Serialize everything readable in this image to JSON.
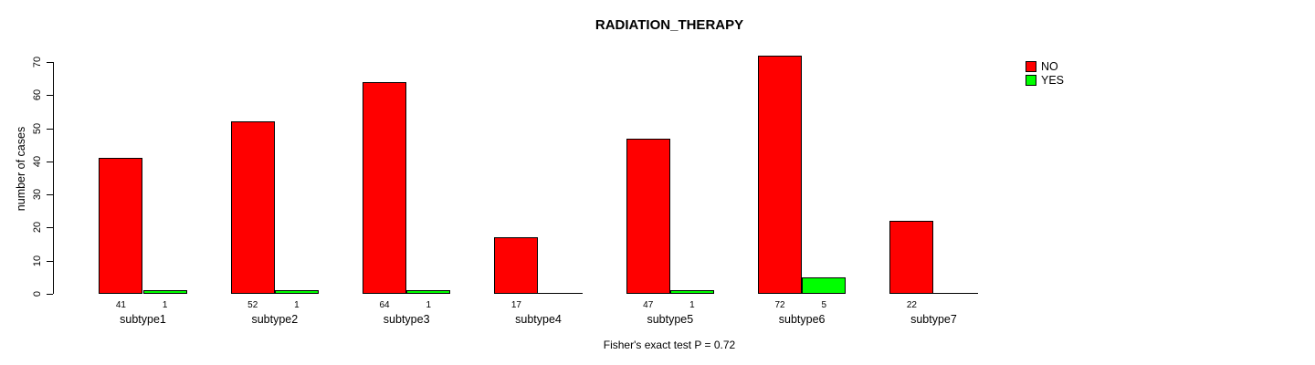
{
  "title": "RADIATION_THERAPY",
  "caption": "Fisher's exact test P = 0.72",
  "chart_data": {
    "type": "bar",
    "title": "RADIATION_THERAPY",
    "xlabel": "",
    "ylabel": "number of cases",
    "categories": [
      "subtype1",
      "subtype2",
      "subtype3",
      "subtype4",
      "subtype5",
      "subtype6",
      "subtype7"
    ],
    "series": [
      {
        "name": "NO",
        "color": "#ff0000",
        "values": [
          41,
          52,
          64,
          17,
          47,
          72,
          22
        ]
      },
      {
        "name": "YES",
        "color": "#00ff00",
        "values": [
          1,
          1,
          1,
          0,
          1,
          5,
          0
        ]
      }
    ],
    "ylim": [
      0,
      70
    ],
    "yticks": [
      0,
      10,
      20,
      30,
      40,
      50,
      60,
      70
    ],
    "grid": false,
    "bar_value_labels_shown": true,
    "zero_values_unlabeled": true,
    "legend_position": "top-right",
    "annotation": "Fisher's exact test P = 0.72"
  },
  "legend": {
    "items": [
      {
        "label": "NO",
        "color": "#ff0000"
      },
      {
        "label": "YES",
        "color": "#00ff00"
      }
    ]
  }
}
